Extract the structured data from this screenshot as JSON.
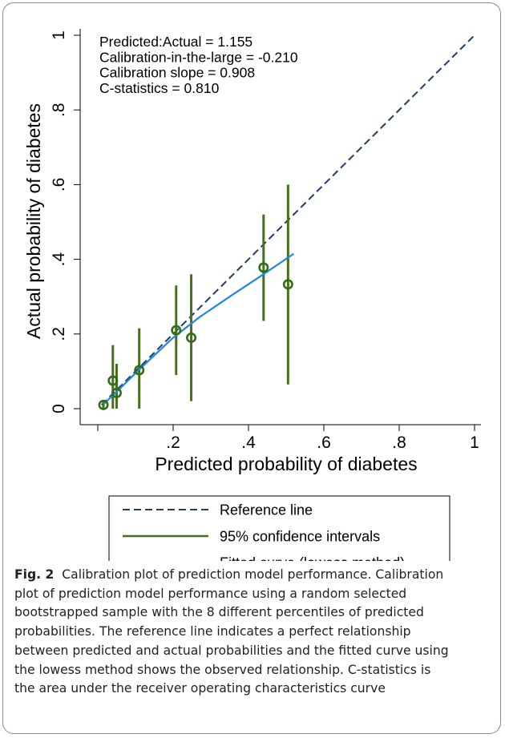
{
  "chart_data": {
    "type": "scatter",
    "xlabel": "Predicted probability of diabetes",
    "ylabel": "Actual probability of diabetes",
    "xlim": [
      0,
      1
    ],
    "ylim": [
      0,
      1
    ],
    "x_ticks": [
      {
        "value": 0.2,
        "label": ".2"
      },
      {
        "value": 0.4,
        "label": ".4"
      },
      {
        "value": 0.6,
        "label": ".6"
      },
      {
        "value": 0.8,
        "label": ".8"
      },
      {
        "value": 1.0,
        "label": "1"
      }
    ],
    "y_ticks": [
      {
        "value": 0.0,
        "label": "0"
      },
      {
        "value": 0.2,
        "label": ".2"
      },
      {
        "value": 0.4,
        "label": ".4"
      },
      {
        "value": 0.6,
        "label": ".6"
      },
      {
        "value": 0.8,
        "label": ".8"
      },
      {
        "value": 1.0,
        "label": "1"
      }
    ],
    "grid": false,
    "annotations": [
      "Predicted:Actual = 1.155",
      "Calibration-in-the-large = -0.210",
      "Calibration slope = 0.908",
      "C-statistics = 0.810"
    ],
    "reference_line": {
      "name": "Reference line",
      "points": [
        [
          0.01,
          0.01
        ],
        [
          1.0,
          1.0
        ]
      ],
      "color": "#1f3d6b"
    },
    "confidence_intervals": {
      "name": "95% confidence intervals",
      "color": "#4a6e1e",
      "intervals": [
        {
          "x": 0.015,
          "low": 0.0,
          "high": 0.02
        },
        {
          "x": 0.04,
          "low": 0.0,
          "high": 0.17
        },
        {
          "x": 0.05,
          "low": 0.0,
          "high": 0.12
        },
        {
          "x": 0.11,
          "low": 0.0,
          "high": 0.215
        },
        {
          "x": 0.208,
          "low": 0.09,
          "high": 0.33
        },
        {
          "x": 0.248,
          "low": 0.02,
          "high": 0.36
        },
        {
          "x": 0.44,
          "low": 0.235,
          "high": 0.52
        },
        {
          "x": 0.505,
          "low": 0.065,
          "high": 0.6
        }
      ]
    },
    "observed_points": {
      "color": "#2e6e12",
      "points": [
        {
          "x": 0.015,
          "y": 0.01
        },
        {
          "x": 0.04,
          "y": 0.075
        },
        {
          "x": 0.05,
          "y": 0.042
        },
        {
          "x": 0.11,
          "y": 0.103
        },
        {
          "x": 0.208,
          "y": 0.21
        },
        {
          "x": 0.248,
          "y": 0.19
        },
        {
          "x": 0.44,
          "y": 0.378
        },
        {
          "x": 0.505,
          "y": 0.333
        }
      ]
    },
    "fitted_curve": {
      "name": "Fitted curve (lowess method)",
      "color": "#1e88e5",
      "points": [
        [
          0.015,
          0.012
        ],
        [
          0.05,
          0.045
        ],
        [
          0.11,
          0.105
        ],
        [
          0.2,
          0.19
        ],
        [
          0.27,
          0.245
        ],
        [
          0.35,
          0.3
        ],
        [
          0.44,
          0.36
        ],
        [
          0.52,
          0.415
        ]
      ]
    },
    "legend_placement": "bottom"
  },
  "caption": {
    "label": "Fig. 2",
    "lines": [
      "Calibration plot of prediction model performance. Calibration",
      "plot of prediction model performance using a random selected",
      "bootstrapped sample with the 8 different percentiles of predicted",
      "probabilities. The reference line indicates a perfect relationship",
      "between predicted and actual probabilities and the fitted curve using",
      "the lowess method shows the observed relationship. C-statistics is",
      "the area under the receiver operating characteristics curve"
    ]
  }
}
